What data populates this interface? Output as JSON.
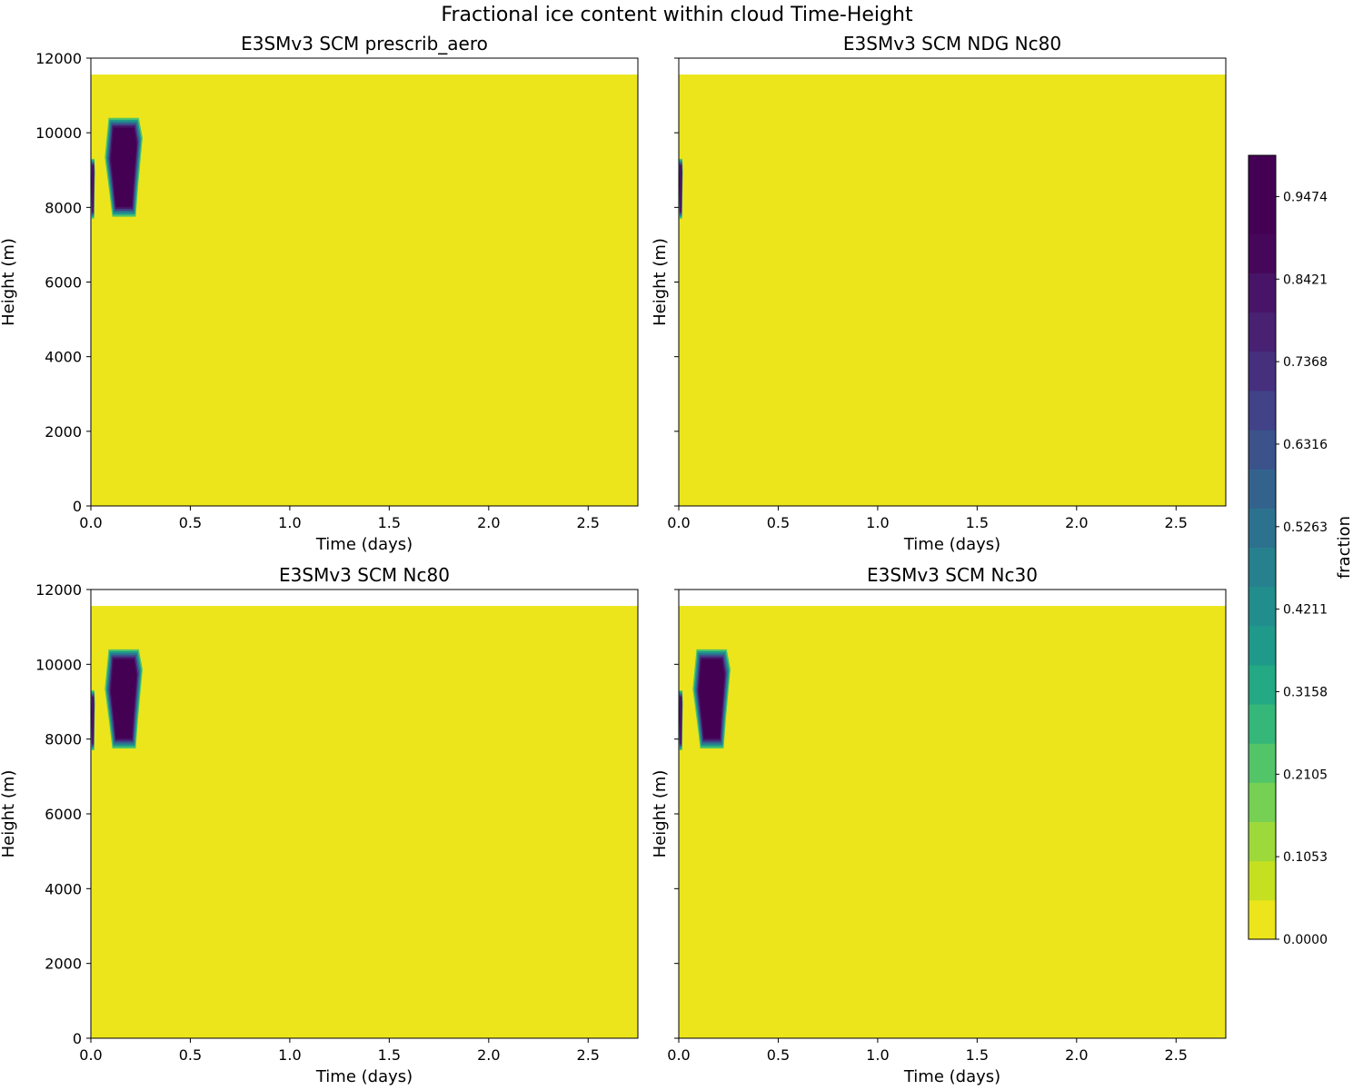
{
  "figure": {
    "suptitle": "Fractional ice content within cloud Time-Height"
  },
  "chart_data": [
    {
      "type": "heatmap",
      "title": "E3SMv3 SCM prescrib_aero",
      "xlabel": "Time (days)",
      "ylabel": "Height (m)",
      "xlim": [
        0,
        2.75
      ],
      "ylim": [
        0,
        12000
      ],
      "xticks": [
        0.0,
        0.5,
        1.0,
        1.5,
        2.0,
        2.5
      ],
      "yticks": [
        0,
        2000,
        4000,
        6000,
        8000,
        10000,
        12000
      ],
      "show_yticklabels": true,
      "data_top": 11560,
      "background_value": 0.0,
      "features": [
        {
          "value": 1.0,
          "t_start": 0.07,
          "t_end": 0.26,
          "z_bottom": 7750,
          "z_top": 10400
        },
        {
          "value": 0.8,
          "t_start": 0.0,
          "t_end": 0.02,
          "z_bottom": 7700,
          "z_top": 9300
        }
      ]
    },
    {
      "type": "heatmap",
      "title": "E3SMv3 SCM NDG Nc80",
      "xlabel": "Time (days)",
      "ylabel": "Height (m)",
      "xlim": [
        0,
        2.75
      ],
      "ylim": [
        0,
        12000
      ],
      "xticks": [
        0.0,
        0.5,
        1.0,
        1.5,
        2.0,
        2.5
      ],
      "yticks": [
        0,
        2000,
        4000,
        6000,
        8000,
        10000,
        12000
      ],
      "show_yticklabels": false,
      "data_top": 11560,
      "background_value": 0.0,
      "features": [
        {
          "value": 0.8,
          "t_start": 0.0,
          "t_end": 0.02,
          "z_bottom": 7700,
          "z_top": 9300
        }
      ]
    },
    {
      "type": "heatmap",
      "title": "E3SMv3 SCM Nc80",
      "xlabel": "Time (days)",
      "ylabel": "Height (m)",
      "xlim": [
        0,
        2.75
      ],
      "ylim": [
        0,
        12000
      ],
      "xticks": [
        0.0,
        0.5,
        1.0,
        1.5,
        2.0,
        2.5
      ],
      "yticks": [
        0,
        2000,
        4000,
        6000,
        8000,
        10000,
        12000
      ],
      "show_yticklabels": true,
      "data_top": 11560,
      "background_value": 0.0,
      "features": [
        {
          "value": 1.0,
          "t_start": 0.07,
          "t_end": 0.26,
          "z_bottom": 7750,
          "z_top": 10400
        },
        {
          "value": 0.8,
          "t_start": 0.0,
          "t_end": 0.02,
          "z_bottom": 7700,
          "z_top": 9300
        }
      ]
    },
    {
      "type": "heatmap",
      "title": "E3SMv3 SCM Nc30",
      "xlabel": "Time (days)",
      "ylabel": "Height (m)",
      "xlim": [
        0,
        2.75
      ],
      "ylim": [
        0,
        12000
      ],
      "xticks": [
        0.0,
        0.5,
        1.0,
        1.5,
        2.0,
        2.5
      ],
      "yticks": [
        0,
        2000,
        4000,
        6000,
        8000,
        10000,
        12000
      ],
      "show_yticklabels": false,
      "data_top": 11560,
      "background_value": 0.0,
      "features": [
        {
          "value": 1.0,
          "t_start": 0.07,
          "t_end": 0.26,
          "z_bottom": 7750,
          "z_top": 10400
        },
        {
          "value": 0.8,
          "t_start": 0.0,
          "t_end": 0.02,
          "z_bottom": 7700,
          "z_top": 9300
        }
      ]
    }
  ],
  "colorbar": {
    "label": "fraction",
    "range": [
      0,
      1
    ],
    "levels": 20,
    "tick_labels": [
      "0.0000",
      "0.1053",
      "0.2105",
      "0.3158",
      "0.4211",
      "0.5263",
      "0.6316",
      "0.7368",
      "0.8421",
      "0.9474"
    ],
    "colors": [
      "#ece51b",
      "#c5e021",
      "#9dd93b",
      "#75d054",
      "#52c569",
      "#35b779",
      "#23a983",
      "#1f9a8a",
      "#218e8d",
      "#27808e",
      "#2c728e",
      "#33638d",
      "#3b528b",
      "#414287",
      "#46307e",
      "#482173",
      "#481467",
      "#46075a",
      "#440154",
      "#440154"
    ]
  }
}
